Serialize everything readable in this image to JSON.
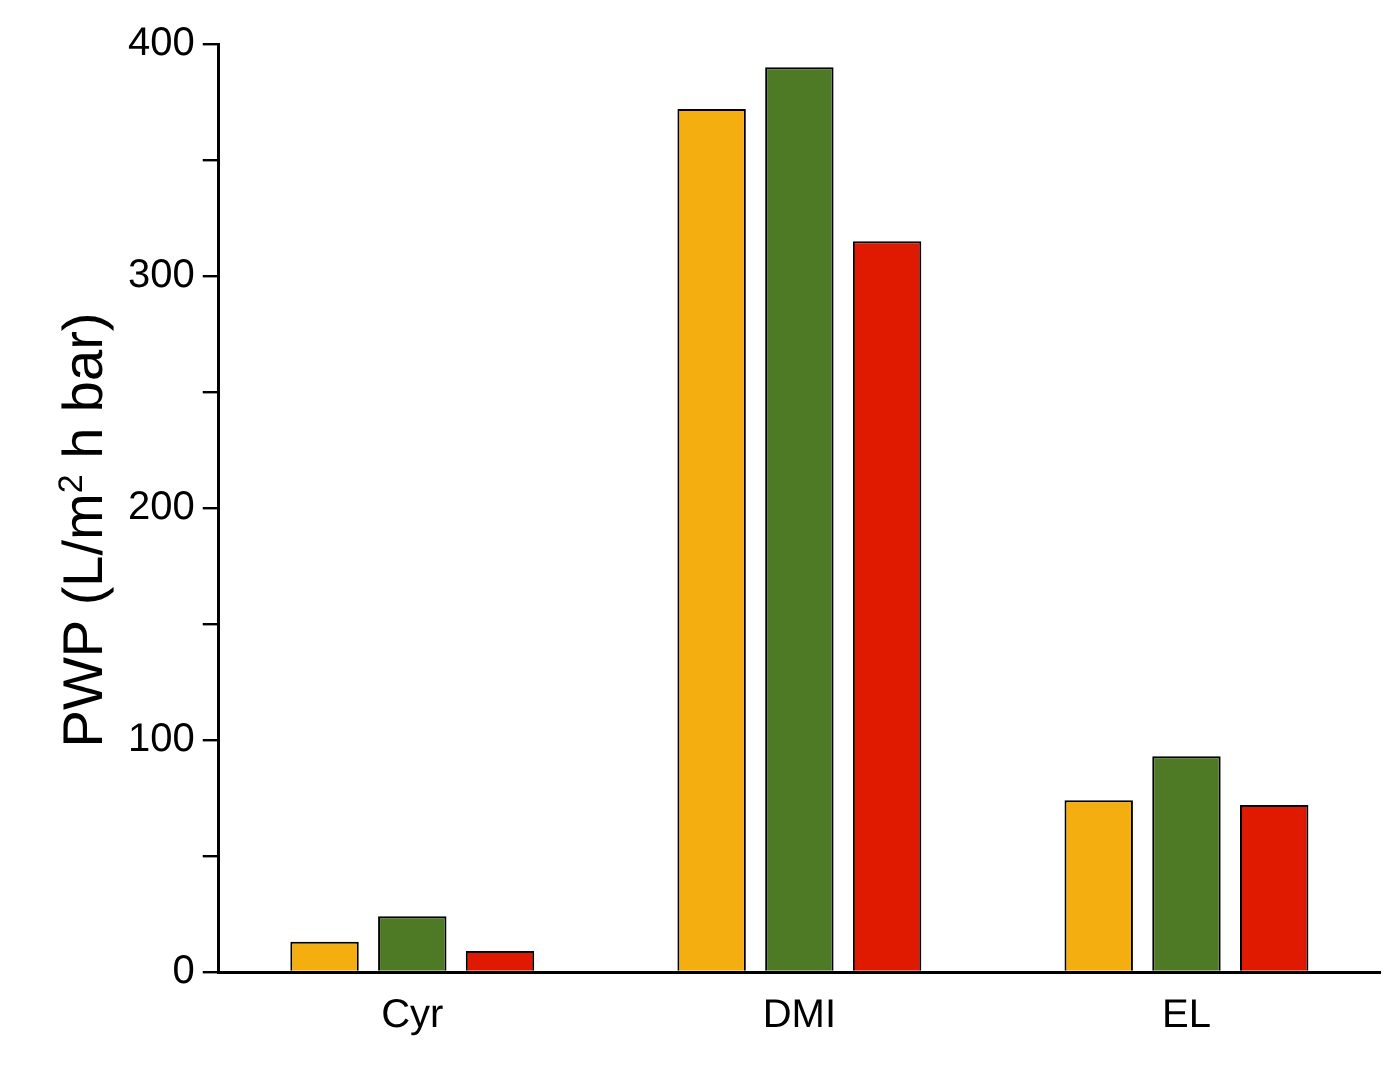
{
  "chart_data": {
    "type": "bar",
    "ylabel": "PWP (L/m$^{2}$ h bar)",
    "categories": [
      "Cyr",
      "DMI",
      "EL"
    ],
    "series": [
      {
        "color": "#f5ae10",
        "values": [
          13,
          372,
          74
        ]
      },
      {
        "color": "#4e7a26",
        "values": [
          24,
          390,
          93
        ]
      },
      {
        "color": "#e01a00",
        "values": [
          9,
          315,
          72
        ]
      }
    ],
    "ylim": [
      0,
      400
    ],
    "yticks": [
      0,
      {
        "value": 50,
        "label": null
      },
      100,
      {
        "value": 150,
        "label": null
      },
      200,
      {
        "value": 250,
        "label": null
      },
      300,
      {
        "value": 350,
        "label": null
      },
      400
    ],
    "grid": false,
    "legend": false
  }
}
